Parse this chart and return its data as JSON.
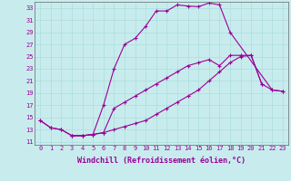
{
  "xlabel": "Windchill (Refroidissement éolien,°C)",
  "bg_color": "#c8eced",
  "line_color": "#990099",
  "yticks": [
    11,
    13,
    15,
    17,
    19,
    21,
    23,
    25,
    27,
    29,
    31,
    33
  ],
  "xticks": [
    0,
    1,
    2,
    3,
    4,
    5,
    6,
    7,
    8,
    9,
    10,
    11,
    12,
    13,
    14,
    15,
    16,
    17,
    18,
    19,
    20,
    21,
    22,
    23
  ],
  "xlim": [
    -0.5,
    23.5
  ],
  "ylim": [
    10.5,
    34.0
  ],
  "line1_x": [
    0,
    1,
    2,
    3,
    4,
    5,
    6,
    7,
    8,
    9,
    10,
    11,
    12,
    13,
    14,
    15,
    16,
    17,
    18,
    22,
    23
  ],
  "line1_y": [
    14.5,
    13.3,
    13.0,
    12.0,
    12.0,
    12.2,
    17.0,
    23.0,
    27.0,
    28.0,
    30.0,
    32.5,
    32.5,
    33.5,
    33.3,
    33.2,
    33.8,
    33.5,
    29.0,
    19.5,
    19.3
  ],
  "line2_x": [
    0,
    1,
    2,
    3,
    4,
    5,
    6,
    7,
    8,
    9,
    10,
    11,
    12,
    13,
    14,
    15,
    16,
    17,
    18,
    19,
    20,
    21,
    22,
    23
  ],
  "line2_y": [
    14.5,
    13.3,
    13.0,
    12.0,
    12.0,
    12.2,
    12.5,
    13.0,
    13.5,
    14.0,
    14.5,
    15.5,
    16.5,
    17.5,
    18.5,
    19.5,
    21.0,
    22.5,
    24.0,
    25.0,
    25.2,
    20.5,
    19.5,
    19.3
  ],
  "line3_x": [
    3,
    4,
    5,
    6,
    7,
    8,
    9,
    10,
    11,
    12,
    13,
    14,
    15,
    16,
    17,
    18,
    19,
    20,
    21
  ],
  "line3_y": [
    12.0,
    12.0,
    12.2,
    12.5,
    16.5,
    17.5,
    18.5,
    19.5,
    20.5,
    21.5,
    22.5,
    23.5,
    24.0,
    24.5,
    23.5,
    25.2,
    25.2,
    25.2,
    20.5
  ],
  "grid_color": "#aadddd",
  "spine_color": "#666666",
  "tick_fontsize": 5.0,
  "xlabel_fontsize": 6.0
}
